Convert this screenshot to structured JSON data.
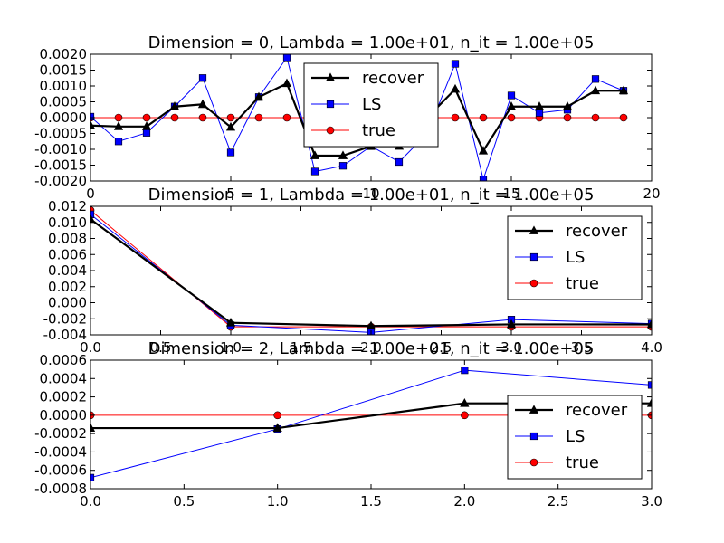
{
  "chart_data": [
    {
      "type": "line",
      "title": "Dimension = 0, Lambda = 1.00e+01, n_it = 1.00e+05",
      "xlim": [
        0,
        20
      ],
      "ylim": [
        -0.002,
        0.002
      ],
      "xticks": [
        "0",
        "5",
        "10",
        "15",
        "20"
      ],
      "yticks": [
        "0.0020",
        "0.0015",
        "0.0010",
        "0.0005",
        "0.0000",
        "-0.0005",
        "-0.0010",
        "-0.0015",
        "-0.0020"
      ],
      "legend_position": "upper-center",
      "x": [
        0,
        1,
        2,
        3,
        4,
        5,
        6,
        7,
        8,
        9,
        10,
        11,
        12,
        13,
        14,
        15,
        16,
        17,
        18,
        19
      ],
      "series": [
        {
          "name": "recover",
          "color": "#000000",
          "marker": "triangle",
          "values": [
            -0.00025,
            -0.00028,
            -0.00028,
            0.00035,
            0.00042,
            -0.0003,
            0.00065,
            0.00108,
            -0.0012,
            -0.0012,
            -0.0009,
            -0.0009,
            0.0,
            0.0009,
            -0.00105,
            0.00035,
            0.00035,
            0.00035,
            0.00085,
            0.00085
          ]
        },
        {
          "name": "LS",
          "color": "#0000ff",
          "marker": "square",
          "values": [
            3e-05,
            -0.00075,
            -0.00048,
            0.00035,
            0.00125,
            -0.0011,
            0.00065,
            0.0019,
            -0.0017,
            -0.00152,
            -0.0009,
            -0.0014,
            -0.0005,
            0.0017,
            -0.00195,
            0.0007,
            0.00015,
            0.00025,
            0.00122,
            0.00085
          ]
        },
        {
          "name": "true",
          "color": "#ff0000",
          "marker": "circle",
          "values": [
            0,
            0,
            0,
            0,
            0,
            0,
            0,
            0,
            0,
            0,
            0,
            0,
            0,
            0,
            0,
            0,
            0,
            0,
            0,
            0
          ]
        }
      ]
    },
    {
      "type": "line",
      "title": "Dimension = 1, Lambda = 1.00e+01, n_it = 1.00e+05",
      "xlim": [
        0,
        4
      ],
      "ylim": [
        -0.004,
        0.012
      ],
      "xticks": [
        "0.0",
        "0.5",
        "1.0",
        "1.5",
        "2.0",
        "2.5",
        "3.0",
        "3.5",
        "4.0"
      ],
      "yticks": [
        "0.012",
        "0.010",
        "0.008",
        "0.006",
        "0.004",
        "0.002",
        "0.000",
        "-0.002",
        "-0.004"
      ],
      "legend_position": "upper-right",
      "x": [
        0,
        1,
        2,
        3,
        4
      ],
      "series": [
        {
          "name": "recover",
          "color": "#000000",
          "marker": "triangle",
          "values": [
            0.0104,
            -0.0025,
            -0.0029,
            -0.0027,
            -0.0027
          ]
        },
        {
          "name": "LS",
          "color": "#0000ff",
          "marker": "square",
          "values": [
            0.011,
            -0.0028,
            -0.0037,
            -0.0021,
            -0.0026
          ]
        },
        {
          "name": "true",
          "color": "#ff0000",
          "marker": "circle",
          "values": [
            0.0115,
            -0.003,
            -0.003,
            -0.003,
            -0.003
          ]
        }
      ]
    },
    {
      "type": "line",
      "title": "Dimension = 2, Lambda = 1.00e+01, n_it = 1.00e+05",
      "xlim": [
        0,
        3
      ],
      "ylim": [
        -0.0008,
        0.0006
      ],
      "xticks": [
        "0.0",
        "0.5",
        "1.0",
        "1.5",
        "2.0",
        "2.5",
        "3.0"
      ],
      "yticks": [
        "0.0006",
        "0.0004",
        "0.0002",
        "0.0000",
        "-0.0002",
        "-0.0004",
        "-0.0006",
        "-0.0008"
      ],
      "legend_position": "lower-right",
      "x": [
        0,
        1,
        2,
        3
      ],
      "series": [
        {
          "name": "recover",
          "color": "#000000",
          "marker": "triangle",
          "values": [
            -0.00014,
            -0.00014,
            0.00013,
            0.00013
          ]
        },
        {
          "name": "LS",
          "color": "#0000ff",
          "marker": "square",
          "values": [
            -0.00068,
            -0.00015,
            0.00049,
            0.00033
          ]
        },
        {
          "name": "true",
          "color": "#ff0000",
          "marker": "circle",
          "values": [
            0,
            0,
            0,
            0
          ]
        }
      ]
    }
  ]
}
